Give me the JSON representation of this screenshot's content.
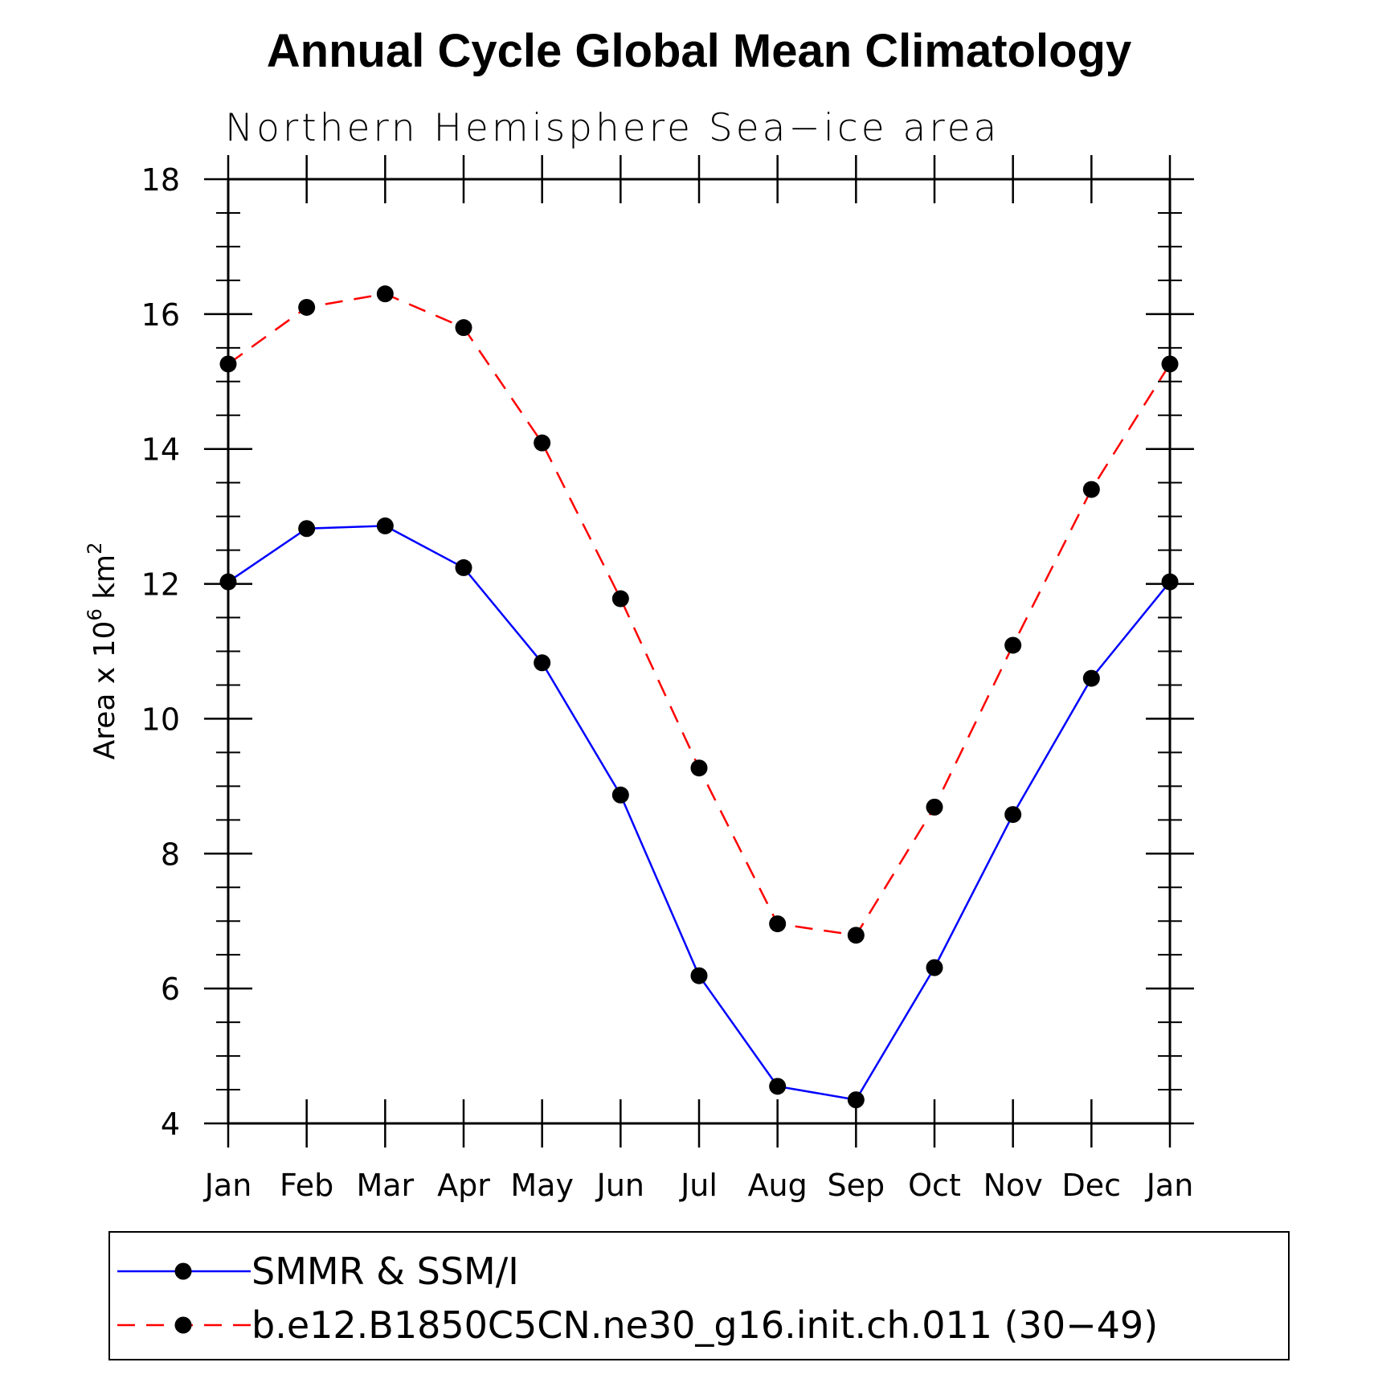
{
  "chart_data": {
    "type": "line",
    "title": "Annual Cycle Global Mean Climatology",
    "subtitle": "Northern Hemisphere Sea−ice area",
    "ylabel_text": "Area x 10",
    "ylabel_exp": "6",
    "ylabel_unit": " km",
    "ylabel_unit_exp": "2",
    "categories": [
      "Jan",
      "Feb",
      "Mar",
      "Apr",
      "May",
      "Jun",
      "Jul",
      "Aug",
      "Sep",
      "Oct",
      "Nov",
      "Dec",
      "Jan"
    ],
    "ylim": [
      4,
      18
    ],
    "yticks": [
      4,
      6,
      8,
      10,
      12,
      14,
      16,
      18
    ],
    "grid": false,
    "legend_position": "bottom",
    "series": [
      {
        "name": "SMMR & SSM/I",
        "color": "#0000ff",
        "style": "solid",
        "values": [
          12.03,
          12.82,
          12.86,
          12.24,
          10.83,
          8.87,
          6.19,
          4.55,
          4.35,
          6.31,
          8.58,
          10.6,
          12.03
        ]
      },
      {
        "name": "b.e12.B1850C5CN.ne30_g16.init.ch.011 (30−49)",
        "color": "#ff0000",
        "style": "dashed",
        "values": [
          15.26,
          16.1,
          16.3,
          15.8,
          14.09,
          11.78,
          9.27,
          6.96,
          6.79,
          8.69,
          11.09,
          13.4,
          15.26
        ]
      }
    ]
  }
}
